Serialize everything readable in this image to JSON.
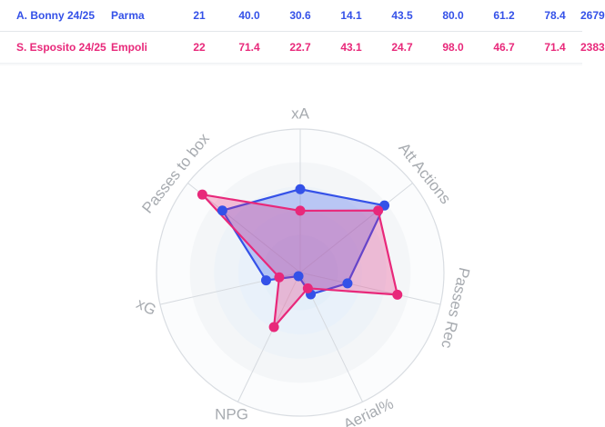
{
  "players": [
    {
      "name": "A. Bonny 24/25",
      "team": "Parma",
      "values": [
        "21",
        "40.0",
        "30.6",
        "14.1",
        "43.5",
        "80.0",
        "61.2",
        "78.4",
        "2679"
      ],
      "color": "#3451e8"
    },
    {
      "name": "S. Esposito 24/25",
      "team": "Empoli",
      "values": [
        "22",
        "71.4",
        "22.7",
        "43.1",
        "24.7",
        "98.0",
        "46.7",
        "71.4",
        "2383"
      ],
      "color": "#e8287a"
    }
  ],
  "chart_data": {
    "type": "radar",
    "axes": [
      "xA",
      "Att Actions",
      "Passes Rec",
      "Aerial%",
      "NPG",
      "xG",
      "Passes to box"
    ],
    "range": [
      0,
      100
    ],
    "grid": true,
    "series": [
      {
        "name": "A. Bonny 24/25",
        "color": "#3451e8",
        "values": [
          62,
          80,
          36,
          18,
          3,
          26,
          74
        ]
      },
      {
        "name": "S. Esposito 24/25",
        "color": "#e8287a",
        "values": [
          46,
          74,
          74,
          13,
          45,
          16,
          93
        ]
      }
    ]
  }
}
